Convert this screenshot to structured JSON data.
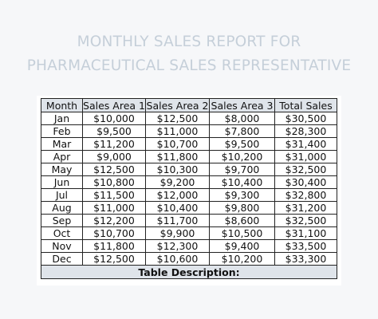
{
  "title": {
    "line1": "MONTHLY SALES REPORT FOR",
    "line2": "PHARMACEUTICAL SALES REPRESENTATIVE"
  },
  "table": {
    "headers": [
      "Month",
      "Sales Area 1",
      "Sales Area 2",
      "Sales Area 3",
      "Total Sales"
    ],
    "rows": [
      [
        "Jan",
        "$10,000",
        "$12,500",
        "$8,000",
        "$30,500"
      ],
      [
        "Feb",
        "$9,500",
        "$11,000",
        "$7,800",
        "$28,300"
      ],
      [
        "Mar",
        "$11,200",
        "$10,700",
        "$9,500",
        "$31,400"
      ],
      [
        "Apr",
        "$9,000",
        "$11,800",
        "$10,200",
        "$31,000"
      ],
      [
        "May",
        "$12,500",
        "$10,300",
        "$9,700",
        "$32,500"
      ],
      [
        "Jun",
        "$10,800",
        "$9,200",
        "$10,400",
        "$30,400"
      ],
      [
        "Jul",
        "$11,500",
        "$12,000",
        "$9,300",
        "$32,800"
      ],
      [
        "Aug",
        "$11,000",
        "$10,400",
        "$9,800",
        "$31,200"
      ],
      [
        "Sep",
        "$12,200",
        "$11,700",
        "$8,600",
        "$32,500"
      ],
      [
        "Oct",
        "$10,700",
        "$9,900",
        "$10,500",
        "$31,100"
      ],
      [
        "Nov",
        "$11,800",
        "$12,300",
        "$9,400",
        "$33,500"
      ],
      [
        "Dec",
        "$12,500",
        "$10,600",
        "$10,200",
        "$33,300"
      ]
    ],
    "description_label": "Table Description:"
  }
}
